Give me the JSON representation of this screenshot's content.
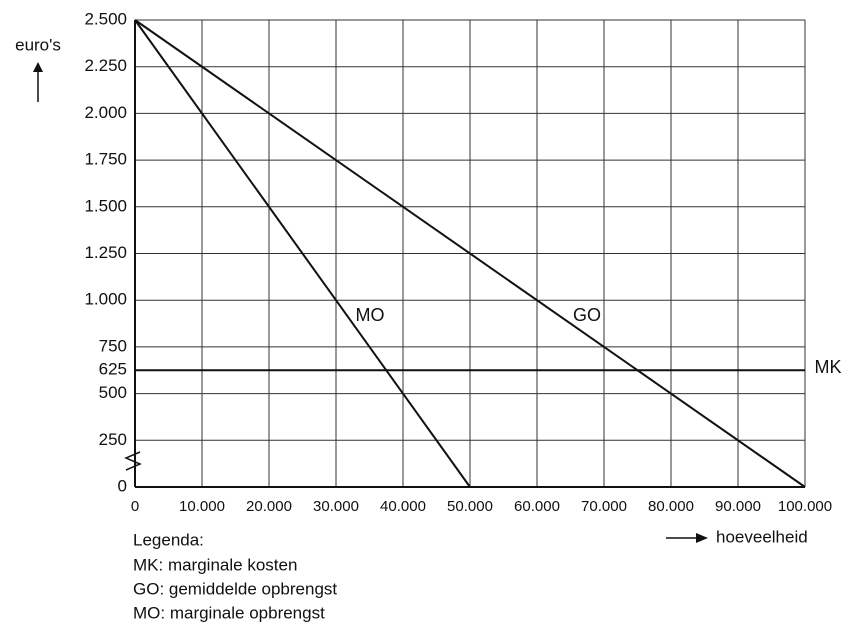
{
  "chart_data": {
    "type": "line",
    "y_label": "euro's",
    "x_label": "hoeveelheid",
    "xlim": [
      0,
      100000
    ],
    "ylim": [
      0,
      2500
    ],
    "xticks": [
      0,
      {
        "value": 10000,
        "label": "10.000"
      },
      {
        "value": 20000,
        "label": "20.000"
      },
      {
        "value": 30000,
        "label": "30.000"
      },
      {
        "value": 40000,
        "label": "40.000"
      },
      {
        "value": 50000,
        "label": "50.000"
      },
      {
        "value": 60000,
        "label": "60.000"
      },
      {
        "value": 70000,
        "label": "70.000"
      },
      {
        "value": 80000,
        "label": "80.000"
      },
      {
        "value": 90000,
        "label": "90.000"
      },
      {
        "value": 100000,
        "label": "100.000"
      }
    ],
    "yticks": [
      0,
      250,
      500,
      625,
      750,
      {
        "value": 1000,
        "label": "1.000"
      },
      {
        "value": 1250,
        "label": "1.250"
      },
      {
        "value": 1500,
        "label": "1.500"
      },
      {
        "value": 1750,
        "label": "1.750"
      },
      {
        "value": 2000,
        "label": "2.000"
      },
      {
        "value": 2250,
        "label": "2.250"
      },
      {
        "value": 2500,
        "label": "2.500"
      }
    ],
    "grid": true,
    "series": [
      {
        "name": "MO",
        "color": "#111111",
        "x": [
          0,
          50000
        ],
        "values": [
          2500,
          0
        ]
      },
      {
        "name": "GO",
        "color": "#111111",
        "x": [
          0,
          100000
        ],
        "values": [
          2500,
          0
        ]
      },
      {
        "name": "MK",
        "color": "#111111",
        "x": [
          0,
          100000
        ],
        "values": [
          625,
          625
        ]
      }
    ],
    "legend": {
      "title": "Legenda:",
      "items": [
        "MK: marginale kosten",
        "GO: gemiddelde opbrengst",
        "MO: marginale opbrengst"
      ]
    }
  }
}
